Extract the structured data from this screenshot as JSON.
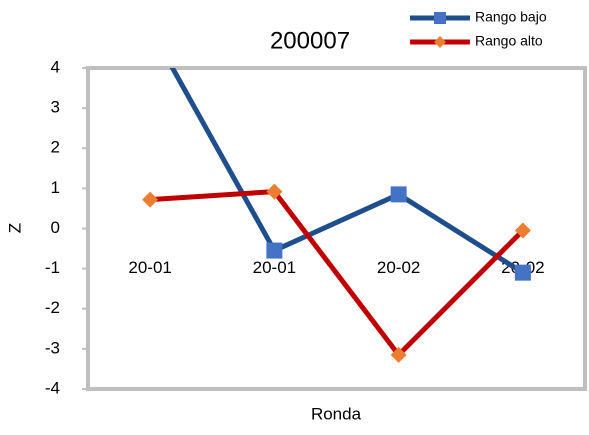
{
  "chart_data": {
    "type": "line",
    "title": "200007",
    "x_label": "Ronda",
    "y_label": "Z",
    "categories": [
      "20-01",
      "20-01",
      "20-02",
      "20-02"
    ],
    "series": [
      {
        "name": "Rango bajo",
        "color": "#1f4e8c",
        "marker_color": "#4472c4",
        "marker": "square",
        "values": [
          5,
          -0.55,
          0.85,
          -1.1
        ]
      },
      {
        "name": "Rango alto",
        "color": "#c00000",
        "marker_color": "#ed7d31",
        "marker": "diamond",
        "values": [
          0.72,
          0.92,
          -3.15,
          -0.05
        ]
      }
    ],
    "ylim": [
      -4,
      4
    ],
    "yticks": [
      -4,
      -3,
      -2,
      -1,
      0,
      1,
      2,
      3,
      4
    ],
    "grid": false,
    "legend": "top-right"
  }
}
